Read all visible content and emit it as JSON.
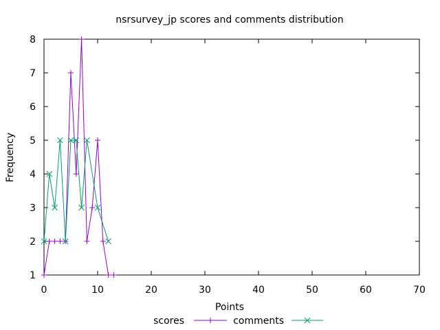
{
  "chart_data": {
    "type": "line",
    "title": "nsrsurvey_jp scores and comments distribution",
    "xlabel": "Points",
    "ylabel": "Frequency",
    "xlim": [
      0,
      70
    ],
    "ylim": [
      1,
      8
    ],
    "xticks": [
      0,
      10,
      20,
      30,
      40,
      50,
      60,
      70
    ],
    "yticks": [
      1,
      2,
      3,
      4,
      5,
      6,
      7,
      8
    ],
    "grid": false,
    "legend_position": "bottom",
    "series": [
      {
        "name": "scores",
        "color": "#9400d3",
        "marker": "plus",
        "x": [
          0,
          1,
          2,
          3,
          4,
          5,
          6,
          7,
          8,
          9,
          10,
          11,
          12,
          13
        ],
        "y": [
          1,
          2,
          2,
          2,
          2,
          7,
          4,
          8,
          2,
          3,
          5,
          2,
          1,
          1
        ]
      },
      {
        "name": "comments",
        "color": "#009e73",
        "marker": "cross",
        "x": [
          0,
          1,
          2,
          3,
          4,
          5,
          6,
          7,
          8,
          10,
          12
        ],
        "y": [
          2,
          4,
          3,
          5,
          2,
          5,
          5,
          3,
          5,
          3,
          2
        ]
      }
    ]
  }
}
